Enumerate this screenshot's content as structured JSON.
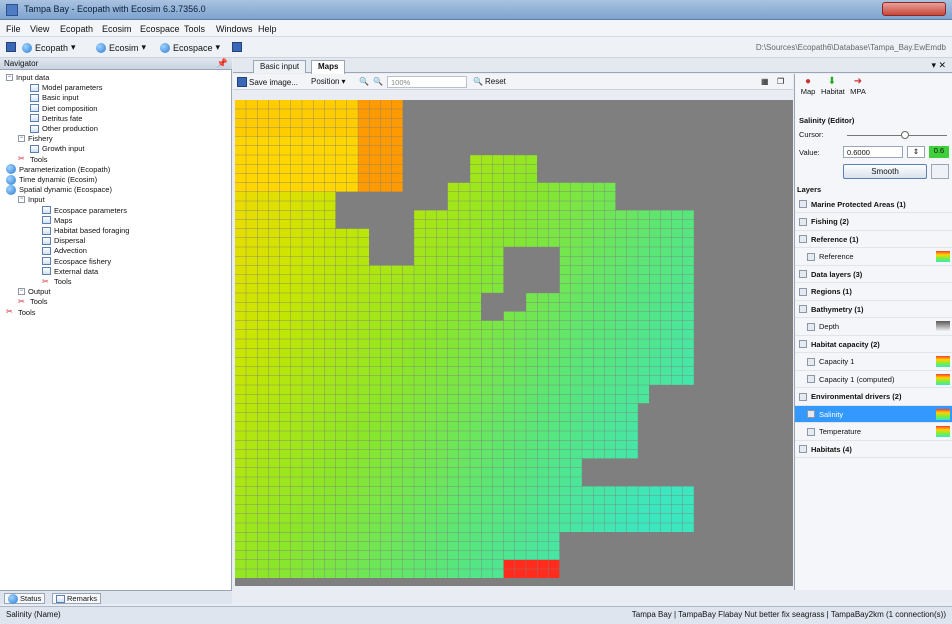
{
  "window": {
    "title": "Tampa Bay - Ecopath with Ecosim 6.3.7356.0"
  },
  "menu": [
    "File",
    "View",
    "Ecopath",
    "Ecosim",
    "Ecospace",
    "Tools",
    "Windows",
    "Help"
  ],
  "toolbar": {
    "ecopath": "Ecopath",
    "ecosim": "Ecosim",
    "ecospace": "Ecospace",
    "path": "D:\\Sources\\Ecopath6\\Database\\Tampa_Bay.EwEmdb"
  },
  "navigator": {
    "title": "Navigator",
    "items": [
      {
        "label": "Input data",
        "level": 0,
        "type": "group"
      },
      {
        "label": "Model parameters",
        "level": 2,
        "type": "item"
      },
      {
        "label": "Basic input",
        "level": 2,
        "type": "item"
      },
      {
        "label": "Diet composition",
        "level": 2,
        "type": "item"
      },
      {
        "label": "Detritus fate",
        "level": 2,
        "type": "item"
      },
      {
        "label": "Other production",
        "level": 2,
        "type": "item"
      },
      {
        "label": "Fishery",
        "level": 1,
        "type": "group"
      },
      {
        "label": "Growth input",
        "level": 2,
        "type": "item"
      },
      {
        "label": "Tools",
        "level": 1,
        "type": "tools"
      },
      {
        "label": "Parameterization (Ecopath)",
        "level": 0,
        "type": "globe"
      },
      {
        "label": "Time dynamic (Ecosim)",
        "level": 0,
        "type": "globe"
      },
      {
        "label": "Spatial dynamic (Ecospace)",
        "level": 0,
        "type": "globe"
      },
      {
        "label": "Input",
        "level": 1,
        "type": "group"
      },
      {
        "label": "Ecospace parameters",
        "level": 3,
        "type": "item"
      },
      {
        "label": "Maps",
        "level": 3,
        "type": "item"
      },
      {
        "label": "Habitat based foraging",
        "level": 3,
        "type": "item"
      },
      {
        "label": "Dispersal",
        "level": 3,
        "type": "item"
      },
      {
        "label": "Advection",
        "level": 3,
        "type": "item"
      },
      {
        "label": "Ecospace fishery",
        "level": 3,
        "type": "item"
      },
      {
        "label": "External data",
        "level": 3,
        "type": "item"
      },
      {
        "label": "Tools",
        "level": 3,
        "type": "tools"
      },
      {
        "label": "Output",
        "level": 1,
        "type": "group"
      },
      {
        "label": "Tools",
        "level": 1,
        "type": "tools"
      },
      {
        "label": "Tools",
        "level": 0,
        "type": "tools"
      }
    ]
  },
  "bottom_tabs": {
    "status": "Status",
    "remarks": "Remarks"
  },
  "statusbar": {
    "left": "Salinity (Name)",
    "right": "Tampa Bay | TampaBay Flabay Nut better fix seagrass | TampaBay2km (1 connection(s))"
  },
  "doctabs": {
    "basic_input": "Basic input",
    "maps": "Maps"
  },
  "maptoolbar": {
    "save": "Save image...",
    "position": "Position",
    "zoom": "100%",
    "reset": "Reset"
  },
  "rightpanel": {
    "buttons": {
      "map": "Map",
      "habitat": "Habitat",
      "mpa": "MPA"
    },
    "editor_title": "Salinity (Editor)",
    "cursor_label": "Cursor:",
    "value_label": "Value:",
    "value": "0.6000",
    "value_badge": "0.6",
    "smooth": "Smooth",
    "layers_title": "Layers",
    "layers": [
      {
        "label": "Marine Protected Areas (1)",
        "group": true,
        "ramp": ""
      },
      {
        "label": "Fishing (2)",
        "group": true,
        "ramp": ""
      },
      {
        "label": "Reference (1)",
        "group": true,
        "ramp": ""
      },
      {
        "label": "Reference",
        "group": false,
        "ramp": "map"
      },
      {
        "label": "Data layers (3)",
        "group": true,
        "ramp": ""
      },
      {
        "label": "Regions (1)",
        "group": true,
        "ramp": ""
      },
      {
        "label": "Bathymetry (1)",
        "group": true,
        "ramp": ""
      },
      {
        "label": "Depth",
        "group": false,
        "ramp": "gray"
      },
      {
        "label": "Habitat capacity (2)",
        "group": true,
        "ramp": ""
      },
      {
        "label": "Capacity 1",
        "group": false,
        "ramp": "color"
      },
      {
        "label": "Capacity 1 (computed)",
        "group": false,
        "ramp": "color"
      },
      {
        "label": "Environmental drivers (2)",
        "group": true,
        "ramp": ""
      },
      {
        "label": "Salinity",
        "group": false,
        "ramp": "color",
        "selected": true
      },
      {
        "label": "Temperature",
        "group": false,
        "ramp": "color"
      },
      {
        "label": "Habitats (4)",
        "group": true,
        "ramp": ""
      }
    ]
  },
  "colors": {
    "grid_bg": "#7f7f7f",
    "selected": "#3399ff"
  }
}
